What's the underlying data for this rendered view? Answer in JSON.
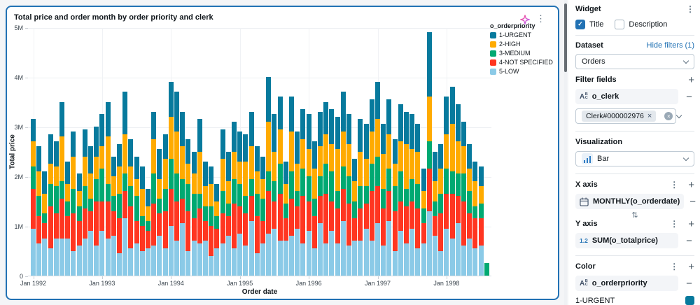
{
  "glyphs": {
    "kebab": "⋮",
    "plus": "+",
    "minus": "−",
    "swap": "⇅",
    "check": "✓",
    "chip_close": "×",
    "clear": "×",
    "number_type": "1.2",
    "string_type_a": "A",
    "string_type_b": "B",
    "string_type_c": "C"
  },
  "chart_card": {
    "title": "Total price and order month by order priority and clerk"
  },
  "chart_data": {
    "type": "bar",
    "stacked": true,
    "title": "Total price and order month by order priority and clerk",
    "xlabel": "Order date",
    "ylabel": "Total price",
    "ylim": [
      0,
      5000000
    ],
    "values_unit": "millions",
    "grid": true,
    "legend_position": "top-right",
    "legend_title": "o_orderpriority",
    "x_range": {
      "start": "Jan 1992",
      "end": "Aug 1998",
      "interval": "month",
      "count": 80
    },
    "x_tick_labels": [
      "Jan 1992",
      "Jan 1993",
      "Jan 1994",
      "Jan 1995",
      "Jan 1996",
      "Jan 1997",
      "Jan 1998"
    ],
    "y_ticks": [
      "0",
      "1M",
      "2M",
      "3M",
      "4M",
      "5M"
    ],
    "legend": [
      {
        "label": "1-URGENT",
        "color": "#077A9D"
      },
      {
        "label": "2-HIGH",
        "color": "#FFAB00"
      },
      {
        "label": "3-MEDIUM",
        "color": "#00A972"
      },
      {
        "label": "4-NOT SPECIFIED",
        "color": "#FF3621"
      },
      {
        "label": "5-LOW",
        "color": "#8BCAE7"
      }
    ],
    "series": [
      {
        "name": "5-LOW",
        "color": "#8BCAE7",
        "values": [
          0.95,
          0.65,
          0.75,
          0.55,
          0.75,
          0.75,
          0.75,
          0.5,
          0.6,
          0.75,
          0.9,
          0.6,
          0.9,
          0.75,
          0.8,
          0.45,
          1.15,
          0.55,
          0.65,
          0.5,
          0.55,
          0.6,
          0.8,
          0.55,
          1.0,
          0.7,
          1.05,
          0.5,
          0.7,
          0.65,
          0.7,
          0.4,
          0.55,
          0.65,
          0.8,
          0.55,
          0.85,
          0.6,
          1.1,
          0.45,
          0.65,
          0.85,
          0.95,
          0.7,
          0.7,
          0.8,
          0.95,
          0.65,
          0.9,
          0.55,
          1.05,
          0.65,
          0.9,
          0.65,
          1.1,
          0.6,
          0.7,
          0.7,
          0.95,
          0.7,
          1.05,
          0.6,
          1.1,
          0.5,
          0.9,
          0.65,
          0.95,
          0.55,
          0.65,
          1.3,
          0.8,
          0.5,
          0.95,
          0.75,
          1.05,
          0.6,
          0.75,
          0.55,
          0.6,
          0
        ]
      },
      {
        "name": "4-NOT SPECIFIED",
        "color": "#FF3621",
        "values": [
          0.8,
          0.55,
          0.3,
          0.85,
          0.5,
          0.8,
          0.45,
          0.75,
          0.5,
          0.6,
          0.4,
          0.9,
          0.6,
          0.75,
          0.5,
          0.7,
          0.55,
          0.85,
          0.45,
          0.5,
          0.35,
          0.85,
          0.45,
          0.75,
          0.75,
          0.8,
          0.5,
          0.8,
          0.45,
          0.7,
          0.4,
          0.6,
          0.4,
          0.6,
          0.4,
          0.9,
          0.55,
          0.65,
          0.5,
          0.75,
          0.45,
          0.85,
          0.55,
          0.95,
          0.45,
          0.75,
          0.45,
          0.95,
          0.6,
          0.65,
          0.55,
          1.0,
          0.6,
          0.7,
          0.65,
          0.85,
          0.45,
          0.65,
          0.5,
          1.0,
          0.75,
          0.75,
          0.6,
          0.8,
          0.6,
          0.75,
          0.55,
          0.8,
          0.4,
          0.85,
          0.4,
          0.75,
          0.7,
          0.9,
          0.55,
          0.9,
          0.5,
          0.6,
          0.55,
          0
        ]
      },
      {
        "name": "3-MEDIUM",
        "color": "#00A972",
        "values": [
          0.45,
          0.4,
          0.2,
          0.45,
          0.55,
          0.35,
          0.3,
          0.5,
          0.3,
          0.45,
          0.25,
          0.45,
          0.65,
          0.35,
          0.3,
          0.5,
          0.35,
          0.4,
          0.5,
          0.2,
          0.2,
          0.6,
          0.3,
          0.45,
          0.6,
          0.55,
          0.4,
          0.55,
          0.5,
          0.3,
          0.3,
          0.4,
          0.25,
          0.45,
          0.25,
          0.5,
          0.45,
          0.35,
          0.35,
          0.45,
          0.45,
          0.4,
          0.4,
          0.6,
          0.3,
          0.55,
          0.3,
          0.55,
          0.5,
          0.35,
          0.4,
          0.6,
          0.6,
          0.35,
          0.45,
          0.55,
          0.35,
          0.45,
          0.35,
          0.55,
          0.6,
          0.4,
          0.45,
          0.5,
          0.6,
          0.35,
          0.45,
          0.5,
          0.3,
          0.55,
          0.3,
          0.4,
          0.5,
          0.45,
          0.45,
          0.55,
          0.45,
          0.25,
          0.3,
          0.25
        ]
      },
      {
        "name": "2-HIGH",
        "color": "#FFAB00",
        "values": [
          0.5,
          0.5,
          0.4,
          0.4,
          0.4,
          0.9,
          0.35,
          0.65,
          0.3,
          0.6,
          0.5,
          0.45,
          0.45,
          0.95,
          0.4,
          0.55,
          0.8,
          0.4,
          0.35,
          0.55,
          0.3,
          0.7,
          0.4,
          0.6,
          0.85,
          0.85,
          0.65,
          0.4,
          0.4,
          0.85,
          0.4,
          0.45,
          0.3,
          0.65,
          0.45,
          0.55,
          0.45,
          0.7,
          0.65,
          0.45,
          0.4,
          1.0,
          0.6,
          0.7,
          0.4,
          0.8,
          0.55,
          0.6,
          0.55,
          0.6,
          0.6,
          0.6,
          0.55,
          0.85,
          0.7,
          0.65,
          0.4,
          0.7,
          0.55,
          0.65,
          0.75,
          0.7,
          0.7,
          0.45,
          0.6,
          0.9,
          0.6,
          0.65,
          0.35,
          0.9,
          0.4,
          0.5,
          0.7,
          0.95,
          0.65,
          0.55,
          0.45,
          0.5,
          0.35,
          0
        ]
      },
      {
        "name": "1-URGENT",
        "color": "#077A9D",
        "values": [
          0.45,
          0.5,
          0.45,
          0.6,
          0.5,
          0.7,
          0.45,
          0.5,
          0.35,
          0.55,
          0.55,
          0.6,
          0.65,
          0.7,
          0.4,
          0.45,
          0.85,
          0.55,
          0.45,
          0.45,
          0.35,
          0.55,
          0.6,
          0.5,
          0.7,
          0.8,
          0.7,
          0.5,
          0.45,
          0.65,
          0.5,
          0.35,
          0.35,
          0.6,
          0.6,
          0.6,
          0.6,
          0.55,
          0.7,
          0.5,
          0.45,
          0.9,
          0.75,
          0.65,
          0.45,
          0.7,
          0.65,
          0.6,
          0.7,
          0.55,
          0.7,
          0.65,
          0.7,
          0.65,
          0.8,
          0.6,
          0.45,
          0.65,
          0.7,
          0.65,
          0.75,
          0.6,
          0.7,
          0.5,
          0.75,
          0.65,
          0.7,
          0.55,
          0.45,
          1.3,
          0.6,
          0.5,
          0.75,
          0.75,
          0.75,
          0.5,
          0.5,
          0.4,
          0.4,
          0
        ]
      }
    ]
  },
  "panel": {
    "widget": {
      "label": "Widget",
      "title_checkbox": {
        "label": "Title",
        "checked": true
      },
      "description_checkbox": {
        "label": "Description",
        "checked": false
      }
    },
    "dataset": {
      "label": "Dataset",
      "hide_filters_link": "Hide filters (1)",
      "selected": "Orders"
    },
    "filter_fields": {
      "label": "Filter fields",
      "field": "o_clerk",
      "chip": "Clerk#000002976"
    },
    "visualization": {
      "label": "Visualization",
      "selected": "Bar"
    },
    "x_axis": {
      "label": "X axis",
      "field": "MONTHLY(o_orderdate)"
    },
    "y_axis": {
      "label": "Y axis",
      "field": "SUM(o_totalprice)"
    },
    "color": {
      "label": "Color",
      "field": "o_orderpriority",
      "first_value": {
        "label": "1-URGENT",
        "color": "#077A9D"
      }
    }
  },
  "colors": {
    "accent_blue": "#2272B4",
    "card_border": "#2272B4",
    "page_bg": "#F4F5F7"
  }
}
